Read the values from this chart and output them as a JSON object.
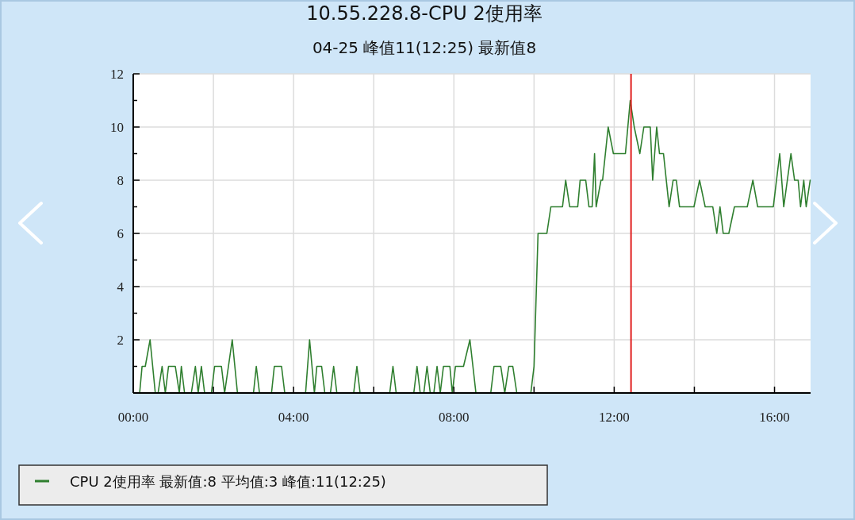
{
  "chart_data": {
    "type": "line",
    "title": "10.55.228.8-CPU 2使用率",
    "subtitle": "04-25 峰值11(12:25) 最新值8",
    "x": [
      0.16,
      0.22,
      0.3,
      0.42,
      0.55,
      0.62,
      0.72,
      0.8,
      0.88,
      1.05,
      1.15,
      1.2,
      1.28,
      1.45,
      1.55,
      1.62,
      1.7,
      1.78,
      1.95,
      2.03,
      2.2,
      2.28,
      2.47,
      2.6,
      3.0,
      3.07,
      3.15,
      3.45,
      3.52,
      3.7,
      3.78,
      4.3,
      4.4,
      4.52,
      4.58,
      4.7,
      4.78,
      4.92,
      5.0,
      5.08,
      5.5,
      5.58,
      5.66,
      6.4,
      6.48,
      6.56,
      7.0,
      7.08,
      7.16,
      7.25,
      7.33,
      7.41,
      7.5,
      7.58,
      7.66,
      7.74,
      7.9,
      7.96,
      8.04,
      8.24,
      8.4,
      8.55,
      8.92,
      9.0,
      9.17,
      9.27,
      9.37,
      9.47,
      9.57,
      9.92,
      10.0,
      10.1,
      10.32,
      10.42,
      10.71,
      10.79,
      10.89,
      11.09,
      11.15,
      11.29,
      11.37,
      11.45,
      11.51,
      11.55,
      11.67,
      11.71,
      11.85,
      11.98,
      12.28,
      12.4,
      12.5,
      12.64,
      12.74,
      12.9,
      12.96,
      13.06,
      13.13,
      13.23,
      13.37,
      13.47,
      13.55,
      13.63,
      13.99,
      14.13,
      14.27,
      14.46,
      14.56,
      14.64,
      14.72,
      14.86,
      15.0,
      15.32,
      15.46,
      15.58,
      15.97,
      16.13,
      16.23,
      16.41,
      16.5,
      16.59,
      16.65,
      16.73,
      16.79,
      16.89
    ],
    "series": [
      {
        "name": "CPU  2使用率 最新值:8  平均值:3  峰值:11(12:25)",
        "color": "#2f7f2f",
        "values": [
          0,
          1,
          1,
          2,
          0,
          0,
          1,
          0,
          1,
          1,
          0,
          1,
          0,
          0,
          1,
          0,
          1,
          0,
          0,
          1,
          1,
          0,
          2,
          0,
          0,
          1,
          0,
          0,
          1,
          1,
          0,
          0,
          2,
          0,
          1,
          1,
          0,
          0,
          1,
          0,
          0,
          1,
          0,
          0,
          1,
          0,
          0,
          1,
          0,
          0,
          1,
          0,
          0,
          1,
          0,
          1,
          1,
          0,
          1,
          1,
          2,
          0,
          0,
          1,
          1,
          0,
          1,
          1,
          0,
          0,
          1,
          6,
          6,
          7,
          7,
          8,
          7,
          7,
          8,
          8,
          7,
          7,
          9,
          7,
          8,
          8,
          10,
          9,
          9,
          11,
          10,
          9,
          10,
          10,
          8,
          10,
          9,
          9,
          7,
          8,
          8,
          7,
          7,
          8,
          7,
          7,
          6,
          7,
          6,
          6,
          7,
          7,
          8,
          7,
          7,
          9,
          7,
          9,
          8,
          8,
          7,
          8,
          7,
          8
        ]
      }
    ],
    "xlim": [
      0,
      16.9
    ],
    "xticks": [
      {
        "value": 0,
        "label": "00:00"
      },
      {
        "value": 2,
        "label": null
      },
      {
        "value": 4,
        "label": "04:00"
      },
      {
        "value": 6,
        "label": null
      },
      {
        "value": 8,
        "label": "08:00"
      },
      {
        "value": 10,
        "label": null
      },
      {
        "value": 12,
        "label": "12:00"
      },
      {
        "value": 14,
        "label": null
      },
      {
        "value": 16,
        "label": "16:00"
      }
    ],
    "ylim": [
      0,
      12
    ],
    "yticks": [
      {
        "value": 1,
        "label": null
      },
      2,
      {
        "value": 3,
        "label": null
      },
      4,
      {
        "value": 5,
        "label": null
      },
      6,
      {
        "value": 7,
        "label": null
      },
      8,
      {
        "value": 9,
        "label": null
      },
      10,
      {
        "value": 11,
        "label": null
      },
      12
    ],
    "grid": true,
    "legend": "bottom left",
    "line_style": "solid",
    "marker": "none",
    "ref_lines": [
      {
        "axis": "x",
        "value": 12.42,
        "color": "#e02020"
      }
    ]
  }
}
